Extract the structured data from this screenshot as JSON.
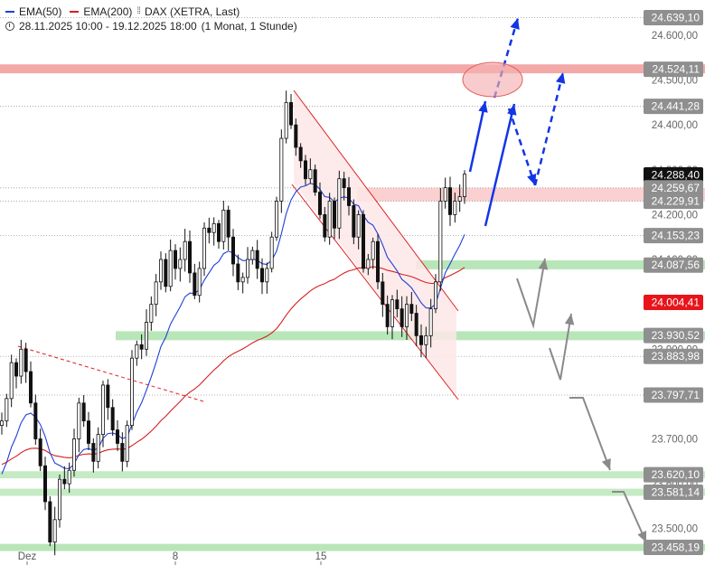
{
  "legend": {
    "ema50": "EMA(50)",
    "ema200": "EMA(200)",
    "instrument": "DAX (XETRA, Last)",
    "range": "28.11.2025 10:00 - 19.12.2025 18:00",
    "interval": "(1 Monat, 1 Stunde)",
    "ema50_color": "#1f3fd6",
    "ema200_color": "#d61f1f"
  },
  "chart_data": {
    "type": "candlestick",
    "x_ticks": [
      "Dez",
      "8",
      "15"
    ],
    "ylim": [
      23420,
      24660
    ],
    "axis_ticks": [
      "24.600,00",
      "24.500,00",
      "24.400,00",
      "24.300,00",
      "24.200,00",
      "24.100,00",
      "24.000,00",
      "23.900,00",
      "23.800,00",
      "23.700,00",
      "23.600,00",
      "23.500,00"
    ],
    "level_lines": [
      "24.639,10",
      "24.441,28",
      "24.259,67",
      "24.229,91",
      "24.153,23",
      "23.883,98",
      "23.797,71"
    ],
    "zones": [
      {
        "label": "24.524,11",
        "from": 24515,
        "to": 24535,
        "color": "#f4a9a9"
      },
      {
        "label": "24.259,67 – 24.229,91",
        "from": 24229.91,
        "to": 24259.67,
        "color": "#fbd0d0"
      },
      {
        "label": "24.087,56",
        "from": 24078,
        "to": 24098,
        "color": "#b8e6b8"
      },
      {
        "label": "23.930,52",
        "from": 23920,
        "to": 23940,
        "color": "#b8e6b8"
      },
      {
        "label": "23.620,10",
        "from": 23612,
        "to": 23628,
        "color": "#c5ebc5"
      },
      {
        "label": "23.581,14",
        "from": 23573,
        "to": 23589,
        "color": "#c5ebc5"
      },
      {
        "label": "23.458,19",
        "from": 23450,
        "to": 23466,
        "color": "#b8e6b8"
      }
    ],
    "badges": [
      {
        "label": "24.639,10",
        "value": 24639.1,
        "style": "grey"
      },
      {
        "label": "24.524,11",
        "value": 24524.11,
        "style": "grey"
      },
      {
        "label": "24.441,28",
        "value": 24441.28,
        "style": "grey"
      },
      {
        "label": "24.288,40",
        "value": 24288.4,
        "style": "black"
      },
      {
        "label": "24.259,67",
        "value": 24259.67,
        "style": "grey"
      },
      {
        "label": "24.229,91",
        "value": 24229.91,
        "style": "grey"
      },
      {
        "label": "24.153,23",
        "value": 24153.23,
        "style": "grey"
      },
      {
        "label": "24.087,56",
        "value": 24087.56,
        "style": "grey"
      },
      {
        "label": "24.004,41",
        "value": 24004.41,
        "style": "red"
      },
      {
        "label": "23.930,52",
        "value": 23930.52,
        "style": "grey"
      },
      {
        "label": "23.883,98",
        "value": 23883.98,
        "style": "grey"
      },
      {
        "label": "23.797,71",
        "value": 23797.71,
        "style": "grey"
      },
      {
        "label": "23.620,10",
        "value": 23620.1,
        "style": "grey"
      },
      {
        "label": "23.581,14",
        "value": 23581.14,
        "style": "grey"
      },
      {
        "label": "23.458,19",
        "value": 23458.19,
        "style": "grey"
      }
    ],
    "close_path": [
      23740,
      23790,
      23870,
      23840,
      23900,
      23850,
      23780,
      23700,
      23640,
      23560,
      23470,
      23520,
      23610,
      23600,
      23630,
      23700,
      23780,
      23740,
      23690,
      23650,
      23710,
      23820,
      23770,
      23720,
      23690,
      23650,
      23730,
      23880,
      23910,
      23900,
      23960,
      24000,
      24050,
      24100,
      24040,
      24120,
      24080,
      24100,
      24140,
      24070,
      24020,
      24080,
      24170,
      24160,
      24180,
      24140,
      24210,
      24150,
      24090,
      24050,
      24060,
      24100,
      24120,
      24080,
      24050,
      24080,
      24150,
      24230,
      24370,
      24450,
      24400,
      24350,
      24320,
      24280,
      24300,
      24250,
      24200,
      24150,
      24230,
      24170,
      24280,
      24260,
      24220,
      24150,
      24200,
      24080,
      24100,
      24140,
      24050,
      24000,
      23950,
      24010,
      23990,
      23950,
      24000,
      23980,
      23930,
      23910,
      23930,
      23990,
      24050,
      24230,
      24260,
      24200,
      24230,
      24240,
      24290
    ]
  }
}
